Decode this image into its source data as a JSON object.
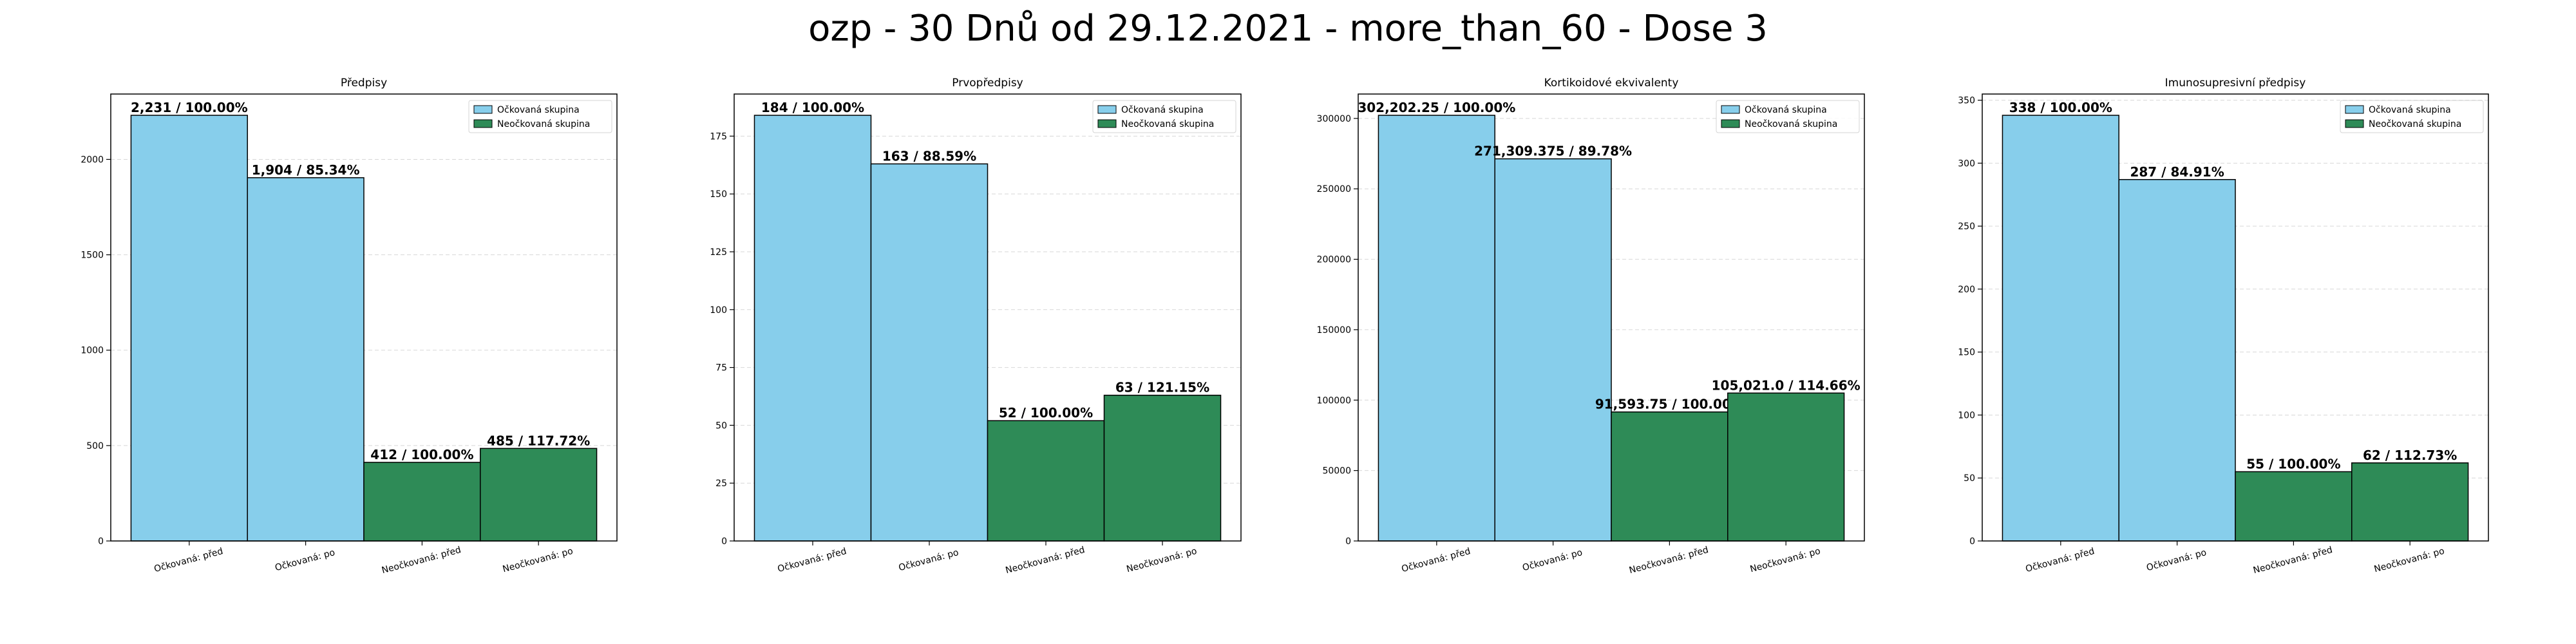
{
  "figure_title": "ozp - 30 Dnů od 29.12.2021 - more_than_60 - Dose 3",
  "colors": {
    "vaccinated": "#87CEEB",
    "unvaccinated": "#2E8B57"
  },
  "legend": {
    "vaccinated": "Očkovaná skupina",
    "unvaccinated": "Neočkovaná skupina"
  },
  "chart_data": [
    {
      "type": "bar",
      "title": "Předpisy",
      "categories": [
        "Očkovaná: před",
        "Očkovaná: po",
        "Neočkovaná: před",
        "Neočkovaná: po"
      ],
      "values": [
        2231,
        1904,
        412,
        485
      ],
      "data_labels": [
        "2,231 / 100.00%",
        "1,904 / 85.34%",
        "412 / 100.00%",
        "485 / 117.72%"
      ],
      "yticks": [
        0,
        500,
        1000,
        1500,
        2000
      ],
      "ylim": [
        0,
        2342.55
      ],
      "legend_position": "top-right",
      "grid": true
    },
    {
      "type": "bar",
      "title": "Prvopředpisy",
      "categories": [
        "Očkovaná: před",
        "Očkovaná: po",
        "Neočkovaná: před",
        "Neočkovaná: po"
      ],
      "values": [
        184,
        163,
        52,
        63
      ],
      "data_labels": [
        "184 / 100.00%",
        "163 / 88.59%",
        "52 / 100.00%",
        "63 / 121.15%"
      ],
      "yticks": [
        0,
        25,
        50,
        75,
        100,
        125,
        150,
        175
      ],
      "ylim": [
        0,
        193.2
      ],
      "legend_position": "top-right",
      "grid": true
    },
    {
      "type": "bar",
      "title": "Kortikoidové ekvivalenty",
      "categories": [
        "Očkovaná: před",
        "Očkovaná: po",
        "Neočkovaná: před",
        "Neočkovaná: po"
      ],
      "values": [
        302202.25,
        271309.375,
        91593.75,
        105021.0
      ],
      "data_labels": [
        "302,202.25 / 100.00%",
        "271,309.375 / 89.78%",
        "91,593.75 / 100.00%",
        "105,021.0 / 114.66%"
      ],
      "yticks": [
        0,
        50000,
        100000,
        150000,
        200000,
        250000,
        300000
      ],
      "ylim": [
        0,
        317312.36
      ],
      "legend_position": "top-right",
      "grid": true
    },
    {
      "type": "bar",
      "title": "Imunosupresivní předpisy",
      "categories": [
        "Očkovaná: před",
        "Očkovaná: po",
        "Neočkovaná: před",
        "Neočkovaná: po"
      ],
      "values": [
        338,
        287,
        55,
        62
      ],
      "data_labels": [
        "338 / 100.00%",
        "287 / 84.91%",
        "55 / 100.00%",
        "62 / 112.73%"
      ],
      "yticks": [
        0,
        50,
        100,
        150,
        200,
        250,
        300,
        350
      ],
      "ylim": [
        0,
        354.9
      ],
      "legend_position": "top-right",
      "grid": true
    }
  ]
}
